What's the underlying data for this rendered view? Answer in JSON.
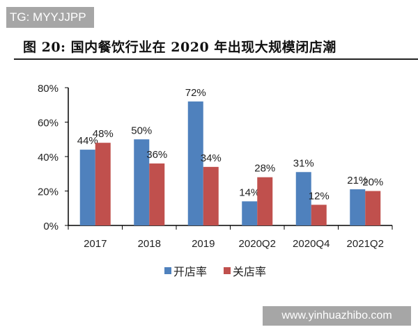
{
  "watermark_top": "TG: MYYJJPP",
  "watermark_bottom": "www.yinhuazhibo.com",
  "chart_data": {
    "type": "bar",
    "title": "图 20: 国内餐饮行业在 2020 年出现大规模闭店潮",
    "categories": [
      "2017",
      "2018",
      "2019",
      "2020Q2",
      "2020Q4",
      "2021Q2"
    ],
    "series": [
      {
        "name": "开店率",
        "color": "#4F81BD",
        "values": [
          44,
          50,
          72,
          14,
          31,
          21
        ]
      },
      {
        "name": "关店率",
        "color": "#C0504D",
        "values": [
          48,
          36,
          34,
          28,
          12,
          20
        ]
      }
    ],
    "ylim": [
      0,
      80
    ],
    "yticks": [
      "0%",
      "20%",
      "40%",
      "60%",
      "80%"
    ],
    "value_suffix": "%",
    "legend_position": "bottom",
    "grid": false,
    "xlabel": "",
    "ylabel": ""
  }
}
